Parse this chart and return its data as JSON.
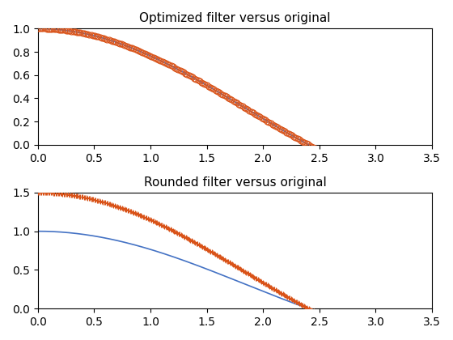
{
  "title1": "Optimized filter versus original",
  "title2": "Rounded filter versus original",
  "xlim": [
    0,
    3.5
  ],
  "ylim1": [
    0,
    1.0
  ],
  "ylim2": [
    0,
    1.5
  ],
  "line_color": "#4472c4",
  "marker_color": "#d95319",
  "marker1": "o",
  "marker2": "+",
  "title_fontsize": 11
}
